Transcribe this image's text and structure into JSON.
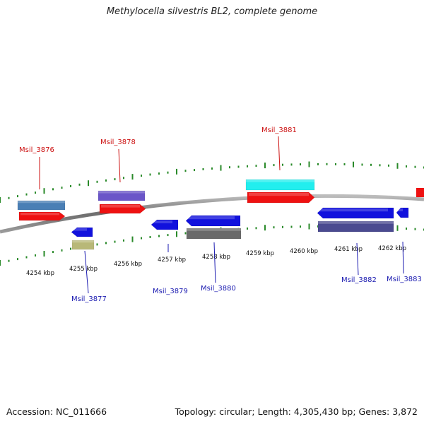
{
  "title": "Methylocella silvestris BL2, complete genome",
  "footer": {
    "accession": "Accession: NC_011666",
    "info": "Topology: circular; Length: 4,305,430 bp; Genes: 3,872"
  },
  "colors": {
    "backbone": "#8a8a8a",
    "tick": "#2a8a2a",
    "forward_label": "#cc1111",
    "reverse_label": "#1a1ab0"
  },
  "scale_labels": [
    "4254 kbp",
    "4255 kbp",
    "4256 kbp",
    "4257 kbp",
    "4258 kbp",
    "4259 kbp",
    "4260 kbp",
    "4261 kbp",
    "4262 kbp"
  ],
  "genes": [
    {
      "label": "Msil_3876",
      "strand": "forward",
      "cds_color": "#ee1111",
      "feature_color": "#4a7fb5"
    },
    {
      "label": "Msil_3877",
      "strand": "reverse",
      "cds_color": "#1111dd",
      "feature_color": "#b8b878"
    },
    {
      "label": "Msil_3878",
      "strand": "forward",
      "cds_color": "#ee1111",
      "feature_color": "#6a55c8"
    },
    {
      "label": "Msil_3879",
      "strand": "reverse",
      "cds_color": "#1111dd",
      "feature_color": ""
    },
    {
      "label": "Msil_3880",
      "strand": "reverse",
      "cds_color": "#1111dd",
      "feature_color": "#6a6a6a"
    },
    {
      "label": "Msil_3881",
      "strand": "forward",
      "cds_color": "#ee1111",
      "feature_color": "#22eeee"
    },
    {
      "label": "Msil_3882",
      "strand": "reverse",
      "cds_color": "#1111dd",
      "feature_color": "#4a4a90"
    },
    {
      "label": "Msil_3883",
      "strand": "reverse",
      "cds_color": "#1111dd",
      "feature_color": ""
    }
  ]
}
